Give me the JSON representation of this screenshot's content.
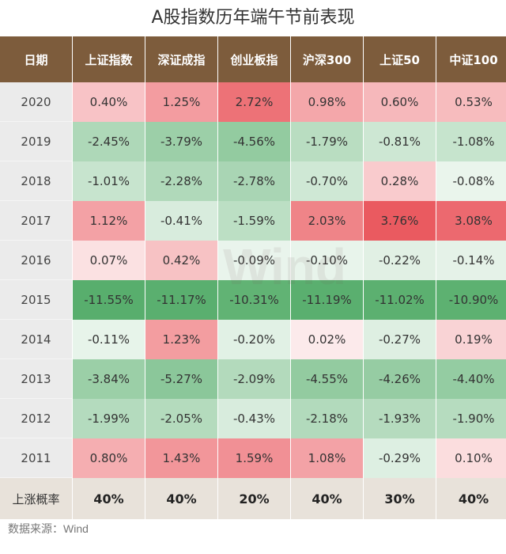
{
  "title": "A股指数历年端午节前表现",
  "source": "数据来源：Wind",
  "watermark": "Wind",
  "colors": {
    "header_bg": "#7d5c3c",
    "positive": "#e8484f",
    "negative": "#2e9a48",
    "footer_bg": "#e8e2da",
    "year_bg": "#ebebeb"
  },
  "chart_data": {
    "type": "table",
    "title": "A股指数历年端午节前表现",
    "header_label": "日期",
    "columns": [
      "上证指数",
      "深证成指",
      "创业板指",
      "沪深300",
      "上证50",
      "中证100"
    ],
    "rows": [
      {
        "year": "2020",
        "values": [
          "0.40%",
          "1.25%",
          "2.72%",
          "0.98%",
          "0.60%",
          "0.53%"
        ]
      },
      {
        "year": "2019",
        "values": [
          "-2.45%",
          "-3.79%",
          "-4.56%",
          "-1.79%",
          "-0.81%",
          "-1.08%"
        ]
      },
      {
        "year": "2018",
        "values": [
          "-1.01%",
          "-2.28%",
          "-2.78%",
          "-0.70%",
          "0.28%",
          "-0.08%"
        ]
      },
      {
        "year": "2017",
        "values": [
          "1.12%",
          "-0.41%",
          "-1.59%",
          "2.03%",
          "3.76%",
          "3.08%"
        ]
      },
      {
        "year": "2016",
        "values": [
          "0.07%",
          "0.42%",
          "-0.09%",
          "-0.10%",
          "-0.22%",
          "-0.14%"
        ]
      },
      {
        "year": "2015",
        "values": [
          "-11.55%",
          "-11.17%",
          "-10.31%",
          "-11.19%",
          "-11.02%",
          "-10.90%"
        ]
      },
      {
        "year": "2014",
        "values": [
          "-0.11%",
          "1.23%",
          "-0.20%",
          "0.02%",
          "-0.27%",
          "0.19%"
        ]
      },
      {
        "year": "2013",
        "values": [
          "-3.84%",
          "-5.27%",
          "-2.09%",
          "-4.55%",
          "-4.26%",
          "-4.40%"
        ]
      },
      {
        "year": "2012",
        "values": [
          "-1.99%",
          "-2.05%",
          "-0.43%",
          "-2.18%",
          "-1.93%",
          "-1.90%"
        ]
      },
      {
        "year": "2011",
        "values": [
          "0.80%",
          "1.43%",
          "1.59%",
          "1.08%",
          "-0.29%",
          "0.10%"
        ]
      }
    ],
    "footer": {
      "label": "上涨概率",
      "values": [
        "40%",
        "40%",
        "20%",
        "40%",
        "30%",
        "40%"
      ]
    }
  }
}
